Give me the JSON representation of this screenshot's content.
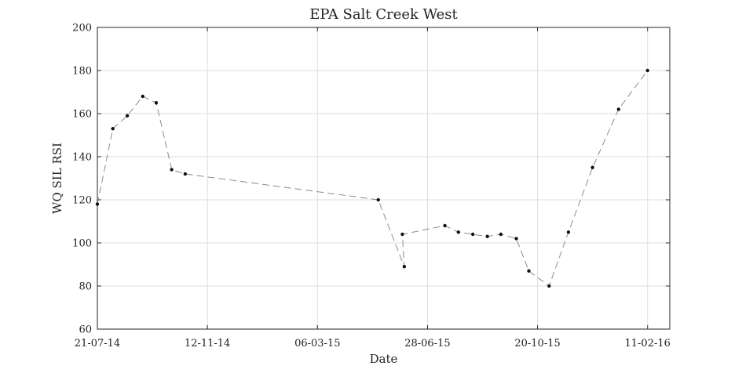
{
  "chart_data": {
    "type": "line",
    "title": "EPA Salt Creek West",
    "xlabel": "Date",
    "ylabel": "WQ SIL RSI",
    "ylim": [
      60,
      200
    ],
    "yticks": [
      60,
      80,
      100,
      120,
      140,
      160,
      180,
      200
    ],
    "xlim": [
      "2014-07-21",
      "2016-03-05"
    ],
    "xticks": [
      {
        "date": "2014-07-21",
        "label": "21-07-14"
      },
      {
        "date": "2014-11-12",
        "label": "12-11-14"
      },
      {
        "date": "2015-03-06",
        "label": "06-03-15"
      },
      {
        "date": "2015-06-28",
        "label": "28-06-15"
      },
      {
        "date": "2015-10-20",
        "label": "20-10-15"
      },
      {
        "date": "2016-02-11",
        "label": "11-02-16"
      }
    ],
    "grid": true,
    "series": [
      {
        "line_color": "#8c8c8c",
        "line_style": "dashed",
        "marker_color": "#111111",
        "points": [
          {
            "x": "2014-07-21",
            "y": 118
          },
          {
            "x": "2014-08-06",
            "y": 153
          },
          {
            "x": "2014-08-21",
            "y": 159
          },
          {
            "x": "2014-09-06",
            "y": 168
          },
          {
            "x": "2014-09-20",
            "y": 165
          },
          {
            "x": "2014-10-06",
            "y": 134
          },
          {
            "x": "2014-10-20",
            "y": 132
          },
          {
            "x": "2015-05-08",
            "y": 120
          },
          {
            "x": "2015-06-04",
            "y": 89
          },
          {
            "x": "2015-06-02",
            "y": 104
          },
          {
            "x": "2015-07-16",
            "y": 108
          },
          {
            "x": "2015-07-30",
            "y": 105
          },
          {
            "x": "2015-08-14",
            "y": 104
          },
          {
            "x": "2015-08-29",
            "y": 103
          },
          {
            "x": "2015-09-12",
            "y": 104
          },
          {
            "x": "2015-09-28",
            "y": 102
          },
          {
            "x": "2015-10-11",
            "y": 87
          },
          {
            "x": "2015-11-01",
            "y": 80
          },
          {
            "x": "2015-11-21",
            "y": 105
          },
          {
            "x": "2015-12-16",
            "y": 135
          },
          {
            "x": "2016-01-12",
            "y": 162
          },
          {
            "x": "2016-02-11",
            "y": 180
          }
        ]
      }
    ]
  }
}
